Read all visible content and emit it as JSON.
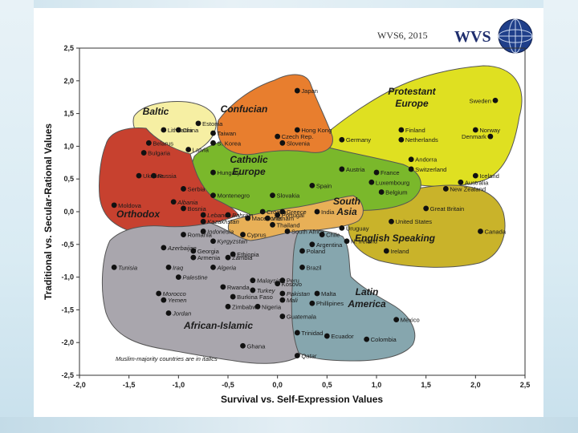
{
  "header": {
    "badge": "WVS6, 2015",
    "logo_text": "WVS"
  },
  "note": "Muslim-majority countries are in italics",
  "colors": {
    "protestant_europe": "#dfe021",
    "english_speaking": "#c9b32a",
    "catholic_europe": "#7ab82b",
    "confucian": "#e87e2e",
    "baltic": "#f6efa3",
    "orthodox": "#c7412f",
    "south_asia": "#e8b057",
    "african_islamic": "#a9a6ad",
    "latin_america": "#86a6ae"
  },
  "chart_data": {
    "type": "scatter",
    "xlabel": "Survival vs. Self-Expression Values",
    "ylabel": "Traditional vs. Secular-Rational Values",
    "xlim": [
      -2.0,
      2.5
    ],
    "ylim": [
      -2.5,
      2.5
    ],
    "xticks": [
      "-2,0",
      "-1,5",
      "-1,0",
      "-0,5",
      "0,0",
      "0,5",
      "1,0",
      "1,5",
      "2,0",
      "2,5"
    ],
    "yticks": [
      "2,5",
      "2,0",
      "1,5",
      "1,0",
      "0,5",
      "0,0",
      "-0,5",
      "-1,0",
      "-1,5",
      "-2,0",
      "-2,5"
    ],
    "grid": false,
    "regions": [
      {
        "name": "Protestant Europe",
        "color": "#dfe021",
        "label": "Protestant\nEurope"
      },
      {
        "name": "English Speaking",
        "color": "#c9b32a",
        "label": "English Speaking"
      },
      {
        "name": "Catholic Europe",
        "color": "#7ab82b",
        "label": "Catholic\nEurope"
      },
      {
        "name": "Confucian",
        "color": "#e87e2e",
        "label": "Confucian"
      },
      {
        "name": "Baltic",
        "color": "#f6efa3",
        "label": "Baltic"
      },
      {
        "name": "Orthodox",
        "color": "#c7412f",
        "label": "Orthodox"
      },
      {
        "name": "South Asia",
        "color": "#e8b057",
        "label": "South\nAsia"
      },
      {
        "name": "African-Islamic",
        "color": "#a9a6ad",
        "label": "African-Islamic"
      },
      {
        "name": "Latin America",
        "color": "#86a6ae",
        "label": "Latin\nAmerica"
      }
    ],
    "points": [
      {
        "name": "Japan",
        "x": 0.2,
        "y": 1.85,
        "italic": false
      },
      {
        "name": "Estonia",
        "x": -0.8,
        "y": 1.35,
        "italic": false
      },
      {
        "name": "Lithuania",
        "x": -1.15,
        "y": 1.25,
        "italic": false
      },
      {
        "name": "China",
        "x": -1.0,
        "y": 1.25,
        "italic": false
      },
      {
        "name": "Taiwan",
        "x": -0.65,
        "y": 1.2,
        "italic": false
      },
      {
        "name": "S. Korea",
        "x": -0.65,
        "y": 1.05,
        "italic": false
      },
      {
        "name": "Hong Kong",
        "x": 0.2,
        "y": 1.25,
        "italic": false
      },
      {
        "name": "Czech Rep.",
        "x": 0.0,
        "y": 1.15,
        "italic": false
      },
      {
        "name": "Slovenia",
        "x": 0.05,
        "y": 1.05,
        "italic": false
      },
      {
        "name": "Belarus",
        "x": -1.3,
        "y": 1.05,
        "italic": false
      },
      {
        "name": "Bulgaria",
        "x": -1.35,
        "y": 0.9,
        "italic": false
      },
      {
        "name": "Latvia",
        "x": -0.9,
        "y": 0.95,
        "italic": false
      },
      {
        "name": "Ukraine",
        "x": -1.4,
        "y": 0.55,
        "italic": false
      },
      {
        "name": "Russia",
        "x": -1.25,
        "y": 0.55,
        "italic": false
      },
      {
        "name": "Hungary",
        "x": -0.65,
        "y": 0.6,
        "italic": false
      },
      {
        "name": "Serbia",
        "x": -0.95,
        "y": 0.35,
        "italic": false
      },
      {
        "name": "Montenegro",
        "x": -0.65,
        "y": 0.25,
        "italic": false
      },
      {
        "name": "Moldova",
        "x": -1.65,
        "y": 0.1,
        "italic": false
      },
      {
        "name": "Albania",
        "x": -1.05,
        "y": 0.15,
        "italic": true
      },
      {
        "name": "Bosnia",
        "x": -0.95,
        "y": 0.05,
        "italic": false
      },
      {
        "name": "Slovakia",
        "x": -0.05,
        "y": 0.25,
        "italic": false
      },
      {
        "name": "Croatia",
        "x": -0.15,
        "y": 0.0,
        "italic": false
      },
      {
        "name": "Greece",
        "x": 0.05,
        "y": 0.0,
        "italic": false
      },
      {
        "name": "Spain",
        "x": 0.35,
        "y": 0.4,
        "italic": false
      },
      {
        "name": "Austria",
        "x": 0.65,
        "y": 0.65,
        "italic": false
      },
      {
        "name": "Germany",
        "x": 0.65,
        "y": 1.1,
        "italic": false
      },
      {
        "name": "Finland",
        "x": 1.25,
        "y": 1.25,
        "italic": false
      },
      {
        "name": "Netherlands",
        "x": 1.25,
        "y": 1.1,
        "italic": false
      },
      {
        "name": "Sweden",
        "x": 2.2,
        "y": 1.7,
        "italic": false
      },
      {
        "name": "Norway",
        "x": 2.0,
        "y": 1.25,
        "italic": false
      },
      {
        "name": "Denmark",
        "x": 2.15,
        "y": 1.15,
        "italic": false
      },
      {
        "name": "Andorra",
        "x": 1.35,
        "y": 0.8,
        "italic": false
      },
      {
        "name": "France",
        "x": 1.0,
        "y": 0.6,
        "italic": false
      },
      {
        "name": "Switzerland",
        "x": 1.35,
        "y": 0.65,
        "italic": false
      },
      {
        "name": "Iceland",
        "x": 2.0,
        "y": 0.55,
        "italic": false
      },
      {
        "name": "Luxembourg",
        "x": 0.95,
        "y": 0.45,
        "italic": false
      },
      {
        "name": "Belgium",
        "x": 1.05,
        "y": 0.3,
        "italic": false
      },
      {
        "name": "Australia",
        "x": 1.85,
        "y": 0.45,
        "italic": false
      },
      {
        "name": "New Zealand",
        "x": 1.7,
        "y": 0.35,
        "italic": false
      },
      {
        "name": "Great Britain",
        "x": 1.5,
        "y": 0.05,
        "italic": false
      },
      {
        "name": "United States",
        "x": 1.15,
        "y": -0.15,
        "italic": false
      },
      {
        "name": "Canada",
        "x": 2.05,
        "y": -0.3,
        "italic": false
      },
      {
        "name": "N. Ireland",
        "x": 0.7,
        "y": -0.45,
        "italic": false
      },
      {
        "name": "Ireland",
        "x": 1.1,
        "y": -0.6,
        "italic": false
      },
      {
        "name": "India",
        "x": 0.4,
        "y": 0.0,
        "italic": false
      },
      {
        "name": "Uruguay",
        "x": 0.65,
        "y": -0.25,
        "italic": false
      },
      {
        "name": "Lebanon",
        "x": -0.75,
        "y": -0.05,
        "italic": true
      },
      {
        "name": "Bahrain",
        "x": -0.5,
        "y": -0.05,
        "italic": true
      },
      {
        "name": "Kazakhstan",
        "x": -0.75,
        "y": -0.15,
        "italic": true
      },
      {
        "name": "Indonesia",
        "x": -0.75,
        "y": -0.3,
        "italic": true
      },
      {
        "name": "Macedonia",
        "x": -0.3,
        "y": -0.1,
        "italic": false
      },
      {
        "name": "Vietnam",
        "x": -0.1,
        "y": -0.1,
        "italic": false
      },
      {
        "name": "Portugal",
        "x": 0.0,
        "y": -0.05,
        "italic": false
      },
      {
        "name": "Thailand",
        "x": -0.05,
        "y": -0.2,
        "italic": false
      },
      {
        "name": "Cyprus",
        "x": -0.35,
        "y": -0.35,
        "italic": false
      },
      {
        "name": "South Africa",
        "x": 0.1,
        "y": -0.3,
        "italic": false
      },
      {
        "name": "Chile",
        "x": 0.45,
        "y": -0.35,
        "italic": false
      },
      {
        "name": "Argentina",
        "x": 0.35,
        "y": -0.5,
        "italic": false
      },
      {
        "name": "Poland",
        "x": 0.25,
        "y": -0.6,
        "italic": false
      },
      {
        "name": "Romania",
        "x": -0.95,
        "y": -0.35,
        "italic": false
      },
      {
        "name": "Azerbaijan",
        "x": -1.15,
        "y": -0.55,
        "italic": true
      },
      {
        "name": "Georgia",
        "x": -0.85,
        "y": -0.6,
        "italic": false
      },
      {
        "name": "Armenia",
        "x": -0.85,
        "y": -0.7,
        "italic": false
      },
      {
        "name": "Kyrgyzstan",
        "x": -0.65,
        "y": -0.45,
        "italic": true
      },
      {
        "name": "Ethiopia",
        "x": -0.45,
        "y": -0.65,
        "italic": false
      },
      {
        "name": "Zambia",
        "x": -0.5,
        "y": -0.7,
        "italic": false
      },
      {
        "name": "Algeria",
        "x": -0.65,
        "y": -0.85,
        "italic": true
      },
      {
        "name": "Tunisia",
        "x": -1.65,
        "y": -0.85,
        "italic": true
      },
      {
        "name": "Iraq",
        "x": -1.1,
        "y": -0.85,
        "italic": true
      },
      {
        "name": "Palestine",
        "x": -1.0,
        "y": -1.0,
        "italic": true
      },
      {
        "name": "Morocco",
        "x": -1.2,
        "y": -1.25,
        "italic": true
      },
      {
        "name": "Yemen",
        "x": -1.15,
        "y": -1.35,
        "italic": true
      },
      {
        "name": "Jordan",
        "x": -1.1,
        "y": -1.55,
        "italic": true
      },
      {
        "name": "Malaysia",
        "x": -0.25,
        "y": -1.05,
        "italic": true
      },
      {
        "name": "Kosovo",
        "x": 0.0,
        "y": -1.1,
        "italic": false
      },
      {
        "name": "Rwanda",
        "x": -0.55,
        "y": -1.15,
        "italic": false
      },
      {
        "name": "Turkey",
        "x": -0.25,
        "y": -1.2,
        "italic": true
      },
      {
        "name": "Pakistan",
        "x": 0.05,
        "y": -1.25,
        "italic": true
      },
      {
        "name": "Burkina Faso",
        "x": -0.45,
        "y": -1.3,
        "italic": false
      },
      {
        "name": "Mali",
        "x": 0.05,
        "y": -1.35,
        "italic": true
      },
      {
        "name": "Zimbabwe",
        "x": -0.5,
        "y": -1.45,
        "italic": false
      },
      {
        "name": "Nigeria",
        "x": -0.2,
        "y": -1.45,
        "italic": false
      },
      {
        "name": "Ghana",
        "x": -0.35,
        "y": -2.05,
        "italic": false
      },
      {
        "name": "Qatar",
        "x": 0.2,
        "y": -2.2,
        "italic": true
      },
      {
        "name": "Peru",
        "x": 0.05,
        "y": -1.05,
        "italic": false
      },
      {
        "name": "Brazil",
        "x": 0.25,
        "y": -0.85,
        "italic": false
      },
      {
        "name": "Malta",
        "x": 0.4,
        "y": -1.25,
        "italic": false
      },
      {
        "name": "Phillipines",
        "x": 0.35,
        "y": -1.4,
        "italic": false
      },
      {
        "name": "Guatemala",
        "x": 0.05,
        "y": -1.6,
        "italic": false
      },
      {
        "name": "Trinidad",
        "x": 0.2,
        "y": -1.85,
        "italic": false
      },
      {
        "name": "Ecuador",
        "x": 0.5,
        "y": -1.9,
        "italic": false
      },
      {
        "name": "Colombia",
        "x": 0.9,
        "y": -1.95,
        "italic": false
      },
      {
        "name": "Mexico",
        "x": 1.2,
        "y": -1.65,
        "italic": false
      }
    ]
  }
}
